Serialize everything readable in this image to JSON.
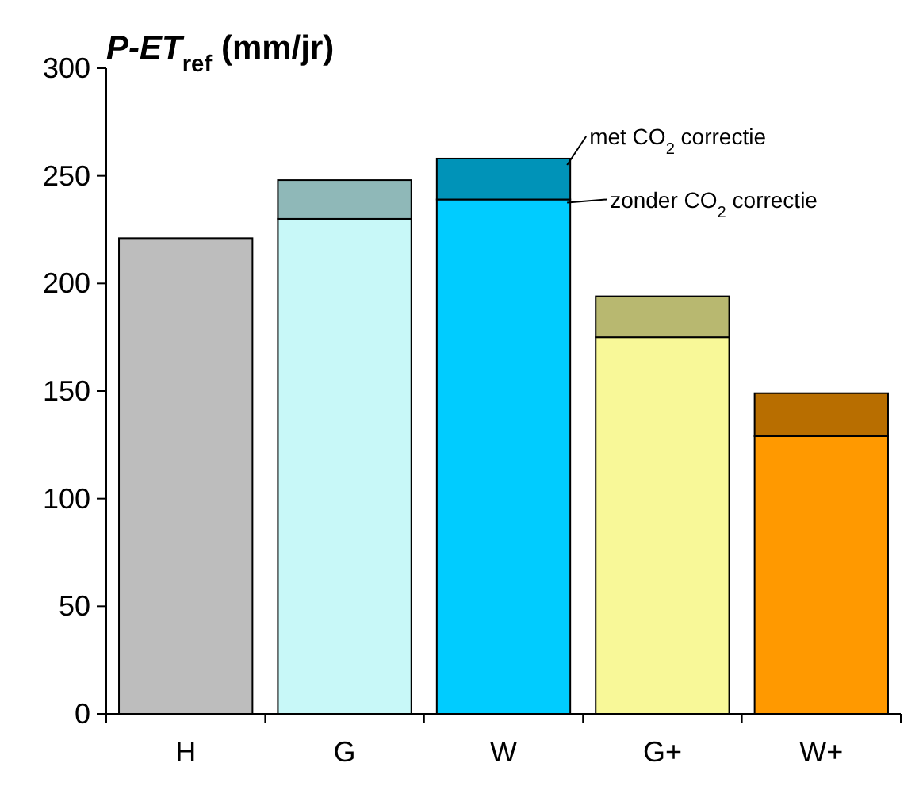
{
  "chart_data": {
    "type": "bar",
    "title": "P-ET$_{ref}$ (mm/jr)",
    "categories": [
      "H",
      "G",
      "W",
      "G+",
      "W+"
    ],
    "stacked": true,
    "ylim": [
      0,
      300
    ],
    "yticks": [
      0,
      50,
      100,
      150,
      200,
      250,
      300
    ],
    "grid": false,
    "legend": "top right",
    "series": [
      {
        "name": "zonder CO$_{2}$ correctie",
        "colors": [
          "#bdbdbd",
          "#c8f8f8",
          "#00ccff",
          "#f8f898",
          "#ff9900"
        ],
        "values": [
          221,
          230,
          239,
          175,
          129
        ]
      },
      {
        "name": "met CO$_{2}$ correctie",
        "colors": [
          null,
          "#8fb8b8",
          "#0093b8",
          "#b8b870",
          "#b86e00"
        ],
        "values": [
          null,
          18,
          19,
          19,
          20
        ]
      }
    ]
  }
}
